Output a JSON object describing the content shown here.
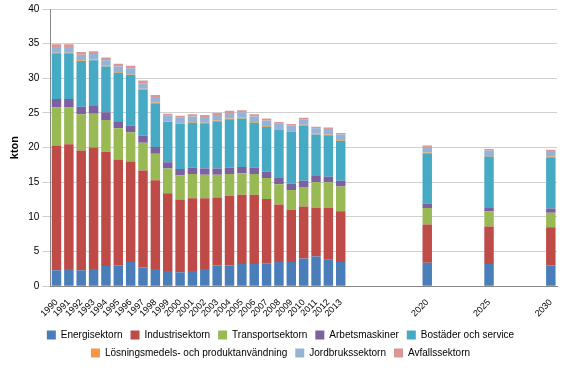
{
  "chart_data": {
    "type": "bar",
    "stacked": true,
    "grid": true,
    "legend": "bottom",
    "ylabel": "kton",
    "ylim": [
      0,
      40
    ],
    "yticks": [
      0,
      5,
      10,
      15,
      20,
      25,
      30,
      35,
      40
    ],
    "categories": [
      "1990",
      "1991",
      "1992",
      "1993",
      "1994",
      "1995",
      "1996",
      "1997",
      "1998",
      "1999",
      "2000",
      "2001",
      "2002",
      "2003",
      "2004",
      "2005",
      "2006",
      "2007",
      "2008",
      "2009",
      "2010",
      "2011",
      "2012",
      "2013",
      null,
      null,
      null,
      null,
      null,
      null,
      "2020",
      null,
      null,
      null,
      null,
      "2025",
      null,
      null,
      null,
      null,
      "2030"
    ],
    "series": [
      {
        "name": "Energisektorn",
        "color": "#4a7ebb",
        "values": [
          2.3,
          2.5,
          2.3,
          2.5,
          2.9,
          3.0,
          3.5,
          2.7,
          2.5,
          2.2,
          2.0,
          2.2,
          2.5,
          3.0,
          3.0,
          3.2,
          3.2,
          3.3,
          3.5,
          3.5,
          4.0,
          4.3,
          3.8,
          3.5,
          null,
          null,
          null,
          null,
          null,
          null,
          3.4,
          null,
          null,
          null,
          null,
          3.2,
          null,
          null,
          null,
          null,
          3.0
        ]
      },
      {
        "name": "Industrisektorn",
        "color": "#be4b48",
        "values": [
          18.0,
          18.0,
          17.3,
          17.5,
          16.5,
          15.3,
          14.5,
          14.0,
          12.8,
          11.2,
          10.5,
          10.5,
          10.2,
          9.8,
          10.0,
          10.0,
          10.0,
          9.3,
          8.3,
          7.5,
          7.5,
          7.0,
          7.5,
          7.3,
          null,
          null,
          null,
          null,
          null,
          null,
          5.5,
          null,
          null,
          null,
          null,
          5.4,
          null,
          null,
          null,
          null,
          5.5
        ]
      },
      {
        "name": "Transportsektorn",
        "color": "#98b954",
        "values": [
          5.5,
          5.3,
          5.2,
          4.9,
          4.6,
          4.5,
          4.2,
          4.0,
          3.8,
          3.6,
          3.5,
          3.5,
          3.4,
          3.3,
          3.2,
          3.1,
          3.0,
          3.0,
          2.9,
          2.9,
          2.8,
          3.7,
          3.7,
          3.6,
          null,
          null,
          null,
          null,
          null,
          null,
          2.4,
          null,
          null,
          null,
          null,
          2.2,
          null,
          null,
          null,
          null,
          2.1
        ]
      },
      {
        "name": "Arbetsmaskiner",
        "color": "#7d60a0",
        "values": [
          1.2,
          1.2,
          1.1,
          1.1,
          1.1,
          1.0,
          1.0,
          1.0,
          1.0,
          0.9,
          0.9,
          0.9,
          0.9,
          0.9,
          0.9,
          0.9,
          0.9,
          0.9,
          0.9,
          0.9,
          0.9,
          0.9,
          0.8,
          0.8,
          null,
          null,
          null,
          null,
          null,
          null,
          0.6,
          null,
          null,
          null,
          null,
          0.6,
          null,
          null,
          null,
          null,
          0.6
        ]
      },
      {
        "name": "Bostäder och service",
        "color": "#46aac5",
        "values": [
          6.6,
          6.6,
          6.6,
          6.6,
          6.6,
          7.0,
          7.3,
          6.7,
          6.3,
          5.8,
          6.5,
          6.5,
          6.5,
          6.8,
          7.0,
          7.0,
          6.5,
          6.5,
          7.0,
          7.5,
          8.0,
          6.0,
          6.0,
          5.8,
          null,
          null,
          null,
          null,
          null,
          null,
          7.3,
          null,
          null,
          null,
          null,
          7.3,
          null,
          null,
          null,
          null,
          7.4
        ]
      },
      {
        "name": "Lösningsmedels- och produktanvändning",
        "color": "#f79646",
        "values": [
          0.1,
          0.1,
          0.1,
          0.1,
          0.1,
          0.1,
          0.1,
          0.1,
          0.1,
          0.1,
          0.1,
          0.1,
          0.1,
          0.1,
          0.1,
          0.1,
          0.1,
          0.1,
          0.1,
          0.1,
          0.1,
          0.1,
          0.1,
          0.1,
          null,
          null,
          null,
          null,
          null,
          null,
          0.1,
          null,
          null,
          null,
          null,
          0.1,
          null,
          null,
          null,
          null,
          0.1
        ]
      },
      {
        "name": "Jordbrukssektorn",
        "color": "#95b3d7",
        "values": [
          0.8,
          0.8,
          0.8,
          0.8,
          0.8,
          0.8,
          0.8,
          0.8,
          0.8,
          0.8,
          0.8,
          0.8,
          0.8,
          0.8,
          0.8,
          0.8,
          0.8,
          0.8,
          0.8,
          0.8,
          0.8,
          0.8,
          0.8,
          0.8,
          null,
          null,
          null,
          null,
          null,
          null,
          0.8,
          null,
          null,
          null,
          null,
          0.8,
          null,
          null,
          null,
          null,
          0.8
        ]
      },
      {
        "name": "Avfallssektorn",
        "color": "#d99795",
        "values": [
          0.4,
          0.4,
          0.4,
          0.4,
          0.4,
          0.4,
          0.4,
          0.4,
          0.3,
          0.3,
          0.3,
          0.3,
          0.3,
          0.3,
          0.3,
          0.3,
          0.3,
          0.3,
          0.2,
          0.2,
          0.2,
          0.2,
          0.2,
          0.2,
          null,
          null,
          null,
          null,
          null,
          null,
          0.2,
          null,
          null,
          null,
          null,
          0.2,
          null,
          null,
          null,
          null,
          0.2
        ]
      }
    ]
  }
}
